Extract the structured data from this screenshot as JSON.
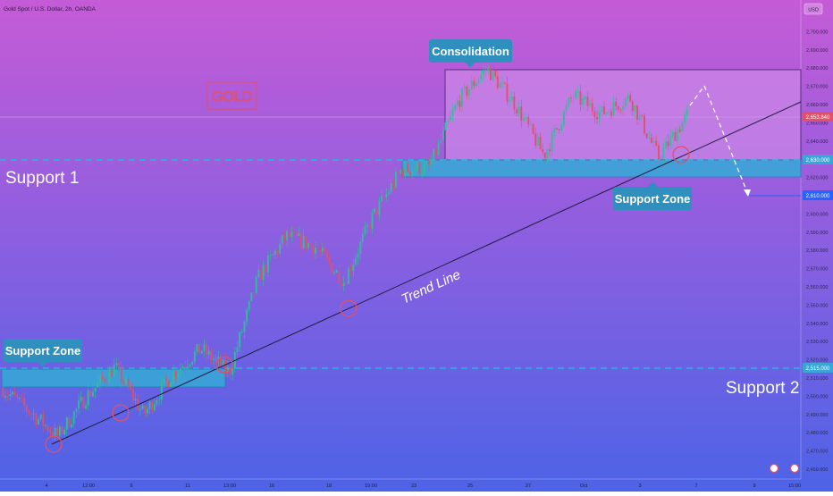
{
  "header": {
    "symbol_title": "Gold Spot / U.S. Dollar, 2h, OANDA",
    "currency": "USD"
  },
  "brand_colors": {
    "bg_top": "#c55bd6",
    "bg_bottom": "#4d63e6",
    "zone_fill": "#39a6d6",
    "zone_border": "#1f7fb8",
    "label_fill": "#2f8fbf",
    "candle_up": "#2fbf9a",
    "candle_down": "#e0506a",
    "marker": "#e0506a",
    "price_badge": "#e0506a",
    "target_badge": "#2962ff",
    "trend_line": "#1c1c3c"
  },
  "chart_data": {
    "type": "candlestick",
    "title": "Gold Spot / U.S. Dollar, 2h, OANDA",
    "ylim": [
      2455,
      2712
    ],
    "y_ticks": [
      "2,460.000",
      "2,470.000",
      "2,480.000",
      "2,490.000",
      "2,500.000",
      "2,510.000",
      "2,520.000",
      "2,530.000",
      "2,540.000",
      "2,550.000",
      "2,560.000",
      "2,570.000",
      "2,580.000",
      "2,590.000",
      "2,600.000",
      "2,610.000",
      "2,620.000",
      "2,630.000",
      "2,640.000",
      "2,650.000",
      "2,660.000",
      "2,670.000",
      "2,680.000",
      "2,690.000",
      "2,700.000"
    ],
    "x_ticks": [
      "4",
      "12:00",
      "9",
      "11",
      "13:00",
      "16",
      "18",
      "19:00",
      "23",
      "25",
      "27",
      "Oct",
      "3",
      "7",
      "9",
      "15:00"
    ],
    "current_price": "2,653.840",
    "target_level": "2,610.000",
    "support_zone_upper_level": "2,630.000",
    "support_zone_lower_level": "2,515.000",
    "price_path": [
      {
        "x": 0,
        "y": 2505
      },
      {
        "x": 1,
        "y": 2492
      },
      {
        "x": 2,
        "y": 2478
      },
      {
        "x": 3,
        "y": 2500
      },
      {
        "x": 4,
        "y": 2516
      },
      {
        "x": 5,
        "y": 2490
      },
      {
        "x": 6,
        "y": 2512
      },
      {
        "x": 7,
        "y": 2526
      },
      {
        "x": 8,
        "y": 2513
      },
      {
        "x": 9,
        "y": 2565
      },
      {
        "x": 10,
        "y": 2588
      },
      {
        "x": 11,
        "y": 2582
      },
      {
        "x": 12,
        "y": 2563
      },
      {
        "x": 13,
        "y": 2598
      },
      {
        "x": 14,
        "y": 2624
      },
      {
        "x": 15,
        "y": 2626
      },
      {
        "x": 16,
        "y": 2662
      },
      {
        "x": 17,
        "y": 2680
      },
      {
        "x": 18,
        "y": 2660
      },
      {
        "x": 19,
        "y": 2632
      },
      {
        "x": 20,
        "y": 2665
      },
      {
        "x": 21,
        "y": 2655
      },
      {
        "x": 22,
        "y": 2664
      },
      {
        "x": 23,
        "y": 2631
      },
      {
        "x": 24,
        "y": 2653.84
      }
    ],
    "series": [
      {
        "name": "Gold Spot / U.S. Dollar",
        "values": "candles"
      }
    ]
  },
  "annotations": {
    "gold_label": "GOLD",
    "consolidation_label": "Consolidation",
    "support_zone_upper_label": "Support Zone",
    "support_zone_lower_label": "Support Zone",
    "support1_label": "Support 1",
    "support2_label": "Support 2",
    "trend_line_label": "Trend Line"
  }
}
